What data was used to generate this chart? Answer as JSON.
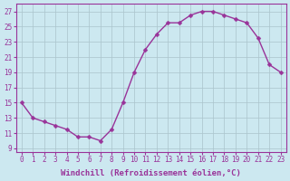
{
  "x": [
    0,
    1,
    2,
    3,
    4,
    5,
    6,
    7,
    8,
    9,
    10,
    11,
    12,
    13,
    14,
    15,
    16,
    17,
    18,
    19,
    20,
    21,
    22,
    23
  ],
  "y": [
    15,
    13,
    12.5,
    12,
    11.5,
    10.5,
    10.5,
    10,
    11.5,
    15,
    19,
    22,
    24,
    25.5,
    25.5,
    26.5,
    27,
    27,
    26.5,
    26,
    25.5,
    23.5,
    20,
    19
  ],
  "line_color": "#993399",
  "marker": "D",
  "marker_size": 2.5,
  "line_width": 1.0,
  "background_color": "#cce8f0",
  "grid_color": "#aac4cc",
  "xlabel": "Windchill (Refroidissement éolien,°C)",
  "xlim": [
    -0.5,
    23.5
  ],
  "ylim": [
    8.5,
    28
  ],
  "yticks": [
    9,
    11,
    13,
    15,
    17,
    19,
    21,
    23,
    25,
    27
  ],
  "xticks": [
    0,
    1,
    2,
    3,
    4,
    5,
    6,
    7,
    8,
    9,
    10,
    11,
    12,
    13,
    14,
    15,
    16,
    17,
    18,
    19,
    20,
    21,
    22,
    23
  ],
  "tick_label_color": "#993399",
  "tick_label_fontsize": 5.5,
  "xlabel_fontsize": 6.5,
  "xlabel_color": "#993399",
  "spine_color": "#993399"
}
